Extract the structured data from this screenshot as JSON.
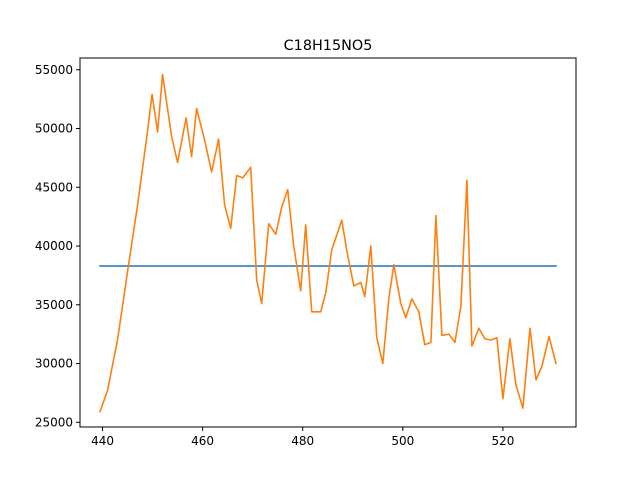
{
  "chart_data": {
    "type": "line",
    "title": "C18H15NO5",
    "xlabel": "",
    "ylabel": "",
    "xlim": [
      435.5,
      534.6
    ],
    "ylim": [
      24600,
      56000
    ],
    "x_ticks": [
      440,
      460,
      480,
      500,
      520
    ],
    "y_ticks": [
      25000,
      30000,
      35000,
      40000,
      45000,
      50000,
      55000
    ],
    "grid": false,
    "series": [
      {
        "color": "#1f77b4",
        "x": [
          439.5,
          530.6
        ],
        "y": [
          38300,
          38300
        ]
      },
      {
        "color": "#ff7f0e",
        "x": [
          439.5,
          441.0,
          443.0,
          445.0,
          447.0,
          448.9,
          449.9,
          451.0,
          452.0,
          453.8,
          455.0,
          456.7,
          457.8,
          458.8,
          460.3,
          461.8,
          463.2,
          464.4,
          465.6,
          466.8,
          468.0,
          469.6,
          470.8,
          471.8,
          473.2,
          474.6,
          475.8,
          477.0,
          478.2,
          479.6,
          480.6,
          481.8,
          483.6,
          484.6,
          485.8,
          487.8,
          488.8,
          490.2,
          491.6,
          492.4,
          493.6,
          494.8,
          496.0,
          497.2,
          498.2,
          499.6,
          500.6,
          501.8,
          503.2,
          504.4,
          505.6,
          506.6,
          507.8,
          509.2,
          510.4,
          511.6,
          512.8,
          513.8,
          515.2,
          516.4,
          517.6,
          518.8,
          520.0,
          521.4,
          522.6,
          524.0,
          525.4,
          526.6,
          527.8,
          529.2,
          530.6
        ],
        "y": [
          25900,
          27700,
          32000,
          37800,
          43500,
          49500,
          52900,
          49700,
          54600,
          49300,
          47100,
          50900,
          47600,
          51700,
          49200,
          46300,
          49100,
          43500,
          41500,
          46000,
          45800,
          46700,
          37100,
          35100,
          41900,
          41000,
          43300,
          44800,
          40000,
          36200,
          41800,
          34400,
          34400,
          36000,
          39700,
          42200,
          39600,
          36600,
          36900,
          35700,
          40000,
          32200,
          30000,
          35500,
          38400,
          35100,
          33900,
          35500,
          34400,
          31600,
          31800,
          42600,
          32400,
          32500,
          31800,
          34900,
          45600,
          31500,
          33000,
          32100,
          32000,
          32200,
          27000,
          32100,
          28200,
          26200,
          33000,
          28600,
          29800,
          32300,
          30000
        ]
      }
    ]
  }
}
